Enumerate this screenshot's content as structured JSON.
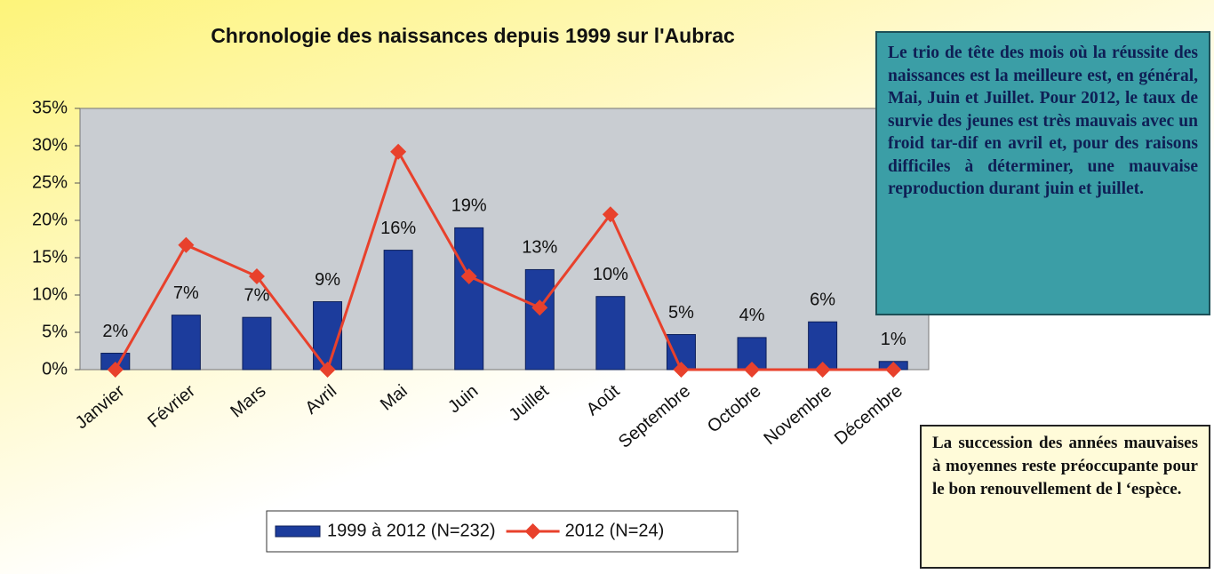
{
  "chart_data": {
    "type": "bar_line",
    "title": "Chronologie des naissances depuis 1999 sur l'Aubrac",
    "categories": [
      "Janvier",
      "Février",
      "Mars",
      "Avril",
      "Mai",
      "Juin",
      "Juillet",
      "Août",
      "Septembre",
      "Octobre",
      "Novembre",
      "Décembre"
    ],
    "series": [
      {
        "name": "1999 à 2012 (N=232)",
        "type": "bar",
        "color": "#1c3c9c",
        "values": [
          2.2,
          7.3,
          7.0,
          9.1,
          16.0,
          19.0,
          13.4,
          9.8,
          4.7,
          4.3,
          6.4,
          1.1
        ],
        "value_labels": [
          "2%",
          "7%",
          "7%",
          "9%",
          "16%",
          "19%",
          "13%",
          "10%",
          "5%",
          "4%",
          "6%",
          "1%"
        ]
      },
      {
        "name": "2012 (N=24)",
        "type": "line",
        "color": "#e8412c",
        "values": [
          0,
          16.7,
          12.5,
          0,
          29.2,
          12.5,
          8.3,
          20.8,
          0,
          0,
          0,
          0
        ]
      }
    ],
    "ylim": [
      0,
      35
    ],
    "yticks": [
      {
        "value": 0,
        "label": "0%"
      },
      {
        "value": 5,
        "label": "5%"
      },
      {
        "value": 10,
        "label": "10%"
      },
      {
        "value": 15,
        "label": "15%"
      },
      {
        "value": 20,
        "label": "20%"
      },
      {
        "value": 25,
        "label": "25%"
      },
      {
        "value": 30,
        "label": "30%"
      },
      {
        "value": 35,
        "label": "35%"
      }
    ],
    "grid": false,
    "annotations": [
      "Le trio de tête des mois où la réussite des naissances est la meilleure est, en général, Mai, Juin et Juillet. Pour 2012, le taux de survie des jeunes est très mauvais avec un froid tar-dif en avril et, pour des raisons difficiles à déterminer, une mauvaise reproduction durant juin et juillet.",
      "La succession des années mauvaises à moyennes reste préoccupante pour le bon renouvellement de l ‘espèce."
    ]
  }
}
